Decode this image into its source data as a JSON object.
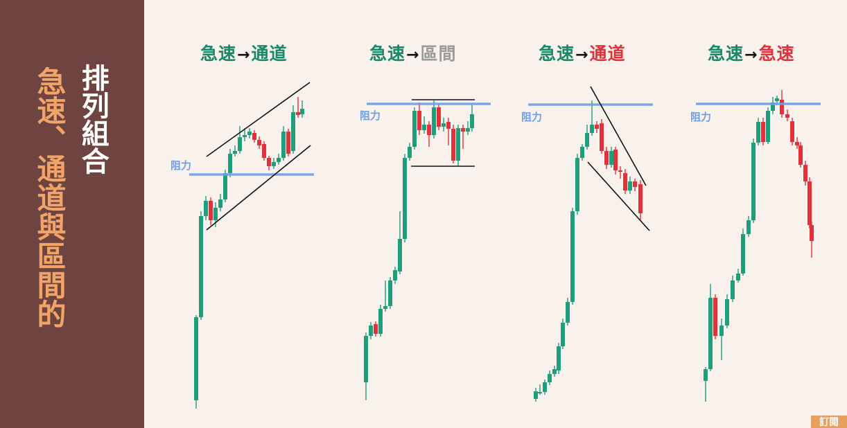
{
  "sidebar": {
    "main_title": "急速、通道與區間的",
    "sub_title": "排列組合",
    "bg_color": "#6f4440",
    "main_color": "#f0a468",
    "sub_color": "#ffffff"
  },
  "colors": {
    "bull": "#1e9e7a",
    "bear": "#e3313c",
    "resistance": "#6f9ee8",
    "gray": "#9a9a9a",
    "line": "#111111"
  },
  "panels": [
    {
      "left": "急速",
      "arrow": "→",
      "right": "通道",
      "left_color": "#178a6a",
      "right_color": "#178a6a",
      "resistance_label": "阻力",
      "pattern": "up-channel"
    },
    {
      "left": "急速",
      "arrow": "→",
      "right": "區間",
      "left_color": "#178a6a",
      "right_color": "#9a9a9a",
      "resistance_label": "阻力",
      "pattern": "range"
    },
    {
      "left": "急速",
      "arrow": "→",
      "right": "通道",
      "left_color": "#178a6a",
      "right_color": "#e3313c",
      "resistance_label": "阻力",
      "pattern": "down-channel"
    },
    {
      "left": "急速",
      "arrow": "→",
      "right": "急速",
      "left_color": "#178a6a",
      "right_color": "#e3313c",
      "resistance_label": "阻力",
      "pattern": "reversal-spike"
    }
  ],
  "corner_tag": "訂閱"
}
